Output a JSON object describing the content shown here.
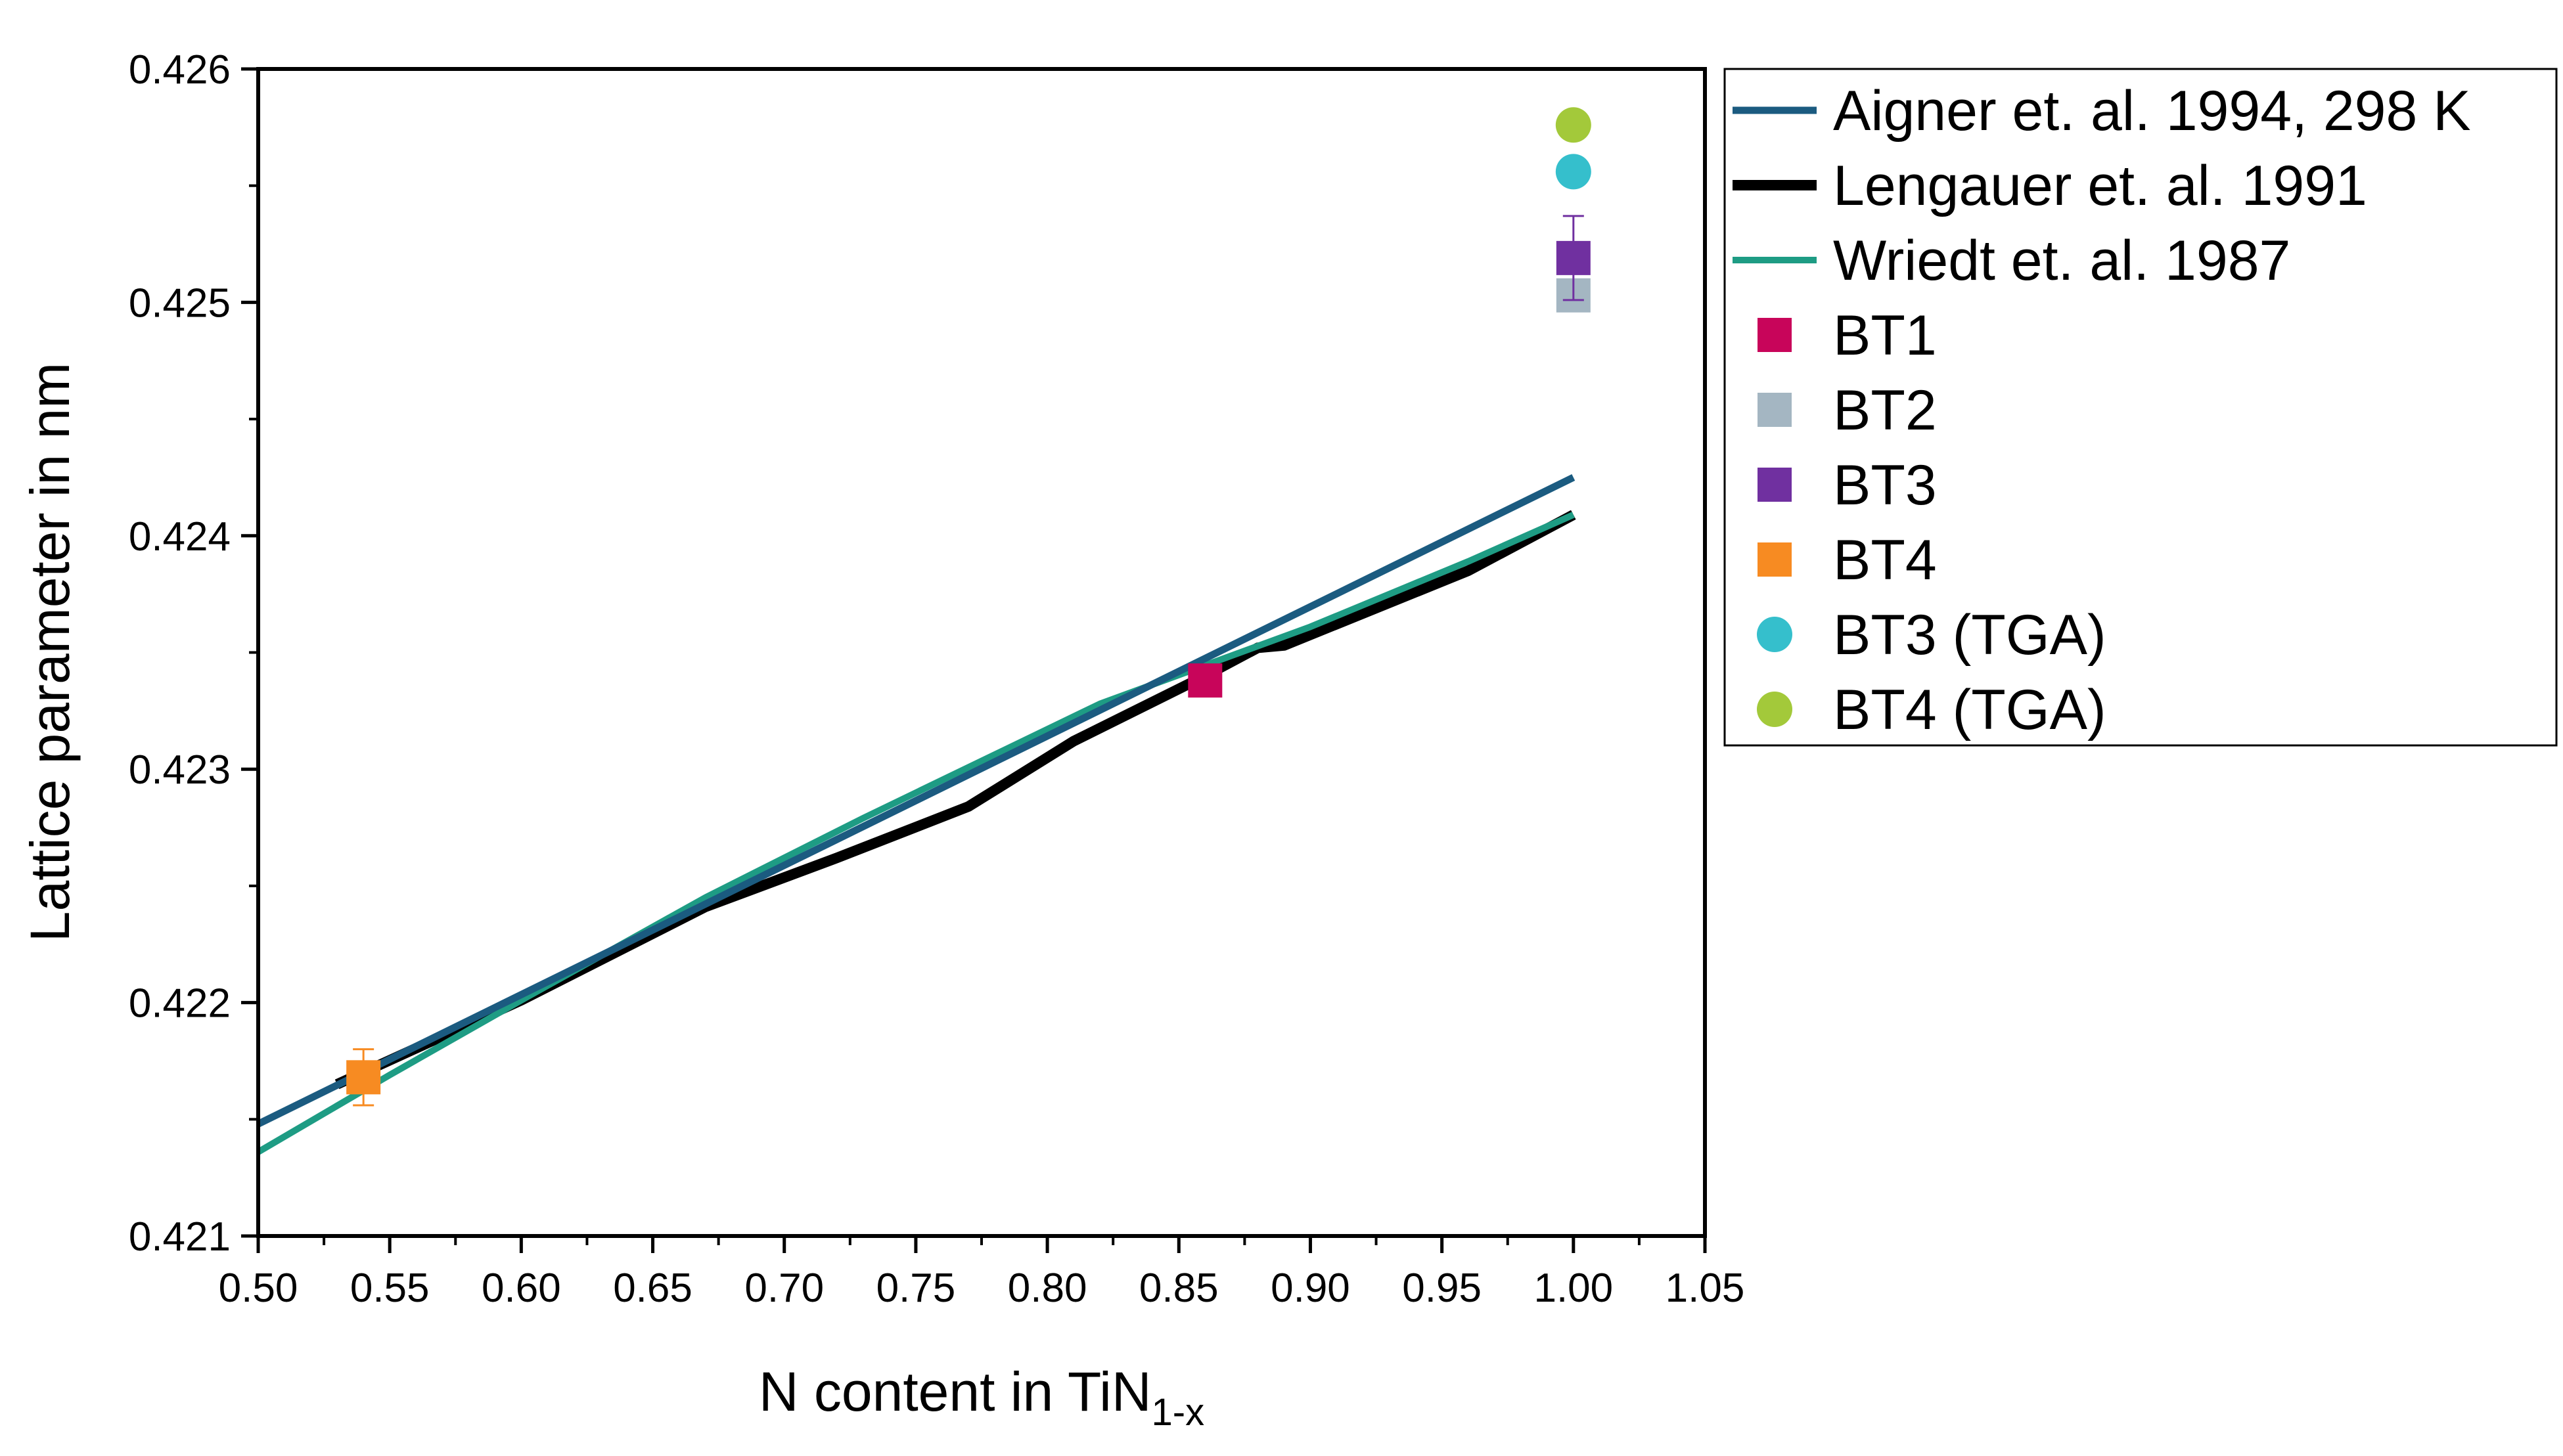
{
  "chart_data": {
    "type": "line",
    "xlabel": "N content in TiN",
    "xlabel_subscript": "1-x",
    "ylabel": "Lattice parameter in nm",
    "xlim": [
      0.5,
      1.05
    ],
    "ylim": [
      0.421,
      0.426
    ],
    "x_ticks": [
      "0.50",
      "0.55",
      "0.60",
      "0.65",
      "0.70",
      "0.75",
      "0.80",
      "0.85",
      "0.90",
      "0.95",
      "1.00",
      "1.05"
    ],
    "y_ticks": [
      "0.421",
      "0.422",
      "0.423",
      "0.424",
      "0.425",
      "0.426"
    ],
    "legend_position": "right, outside plot",
    "series": [
      {
        "name": "Aigner et. al. 1994, 298 K",
        "kind": "line",
        "color": "#1b5b80",
        "points": [
          [
            0.5,
            0.42148
          ],
          [
            1.0,
            0.42425
          ]
        ]
      },
      {
        "name": "Lengauer et. al. 1991",
        "kind": "line",
        "color": "#000000",
        "points": [
          [
            0.53,
            0.42165
          ],
          [
            0.6,
            0.42201
          ],
          [
            0.67,
            0.42241
          ],
          [
            0.72,
            0.42262
          ],
          [
            0.77,
            0.42284
          ],
          [
            0.81,
            0.42312
          ],
          [
            0.86,
            0.4234
          ],
          [
            0.88,
            0.42352
          ],
          [
            0.89,
            0.42353
          ],
          [
            0.96,
            0.42385
          ],
          [
            1.0,
            0.42409
          ]
        ]
      },
      {
        "name": "Wriedt et. al. 1987",
        "kind": "line",
        "color": "#1e9c84",
        "points": [
          [
            0.5,
            0.42136
          ],
          [
            0.55,
            0.42169
          ],
          [
            0.6,
            0.42201
          ],
          [
            0.67,
            0.42245
          ],
          [
            0.73,
            0.42279
          ],
          [
            0.82,
            0.42328
          ],
          [
            0.9,
            0.42361
          ],
          [
            0.96,
            0.42389
          ],
          [
            1.0,
            0.42409
          ]
        ]
      },
      {
        "name": "BT1",
        "kind": "marker",
        "marker": "square",
        "color": "#c8055a",
        "points": [
          [
            0.86,
            0.42338
          ]
        ],
        "error": 6e-05
      },
      {
        "name": "BT2",
        "kind": "marker",
        "marker": "square",
        "color": "#a4b6c2",
        "points": [
          [
            1.0,
            0.42503
          ]
        ],
        "error": 0.0
      },
      {
        "name": "BT3",
        "kind": "marker",
        "marker": "square",
        "color": "#7030a0",
        "points": [
          [
            1.0,
            0.42519
          ]
        ],
        "error": 0.00018
      },
      {
        "name": "BT4",
        "kind": "marker",
        "marker": "square",
        "color": "#f78b22",
        "points": [
          [
            0.54,
            0.42168
          ]
        ],
        "error": 0.00012
      },
      {
        "name": "BT3 (TGA)",
        "kind": "marker",
        "marker": "circle",
        "color": "#35bfcc",
        "points": [
          [
            1.0,
            0.42556
          ]
        ],
        "error": 0.0
      },
      {
        "name": "BT4 (TGA)",
        "kind": "marker",
        "marker": "circle",
        "color": "#a3c93a",
        "points": [
          [
            1.0,
            0.42576
          ]
        ],
        "error": 0.0
      }
    ]
  }
}
